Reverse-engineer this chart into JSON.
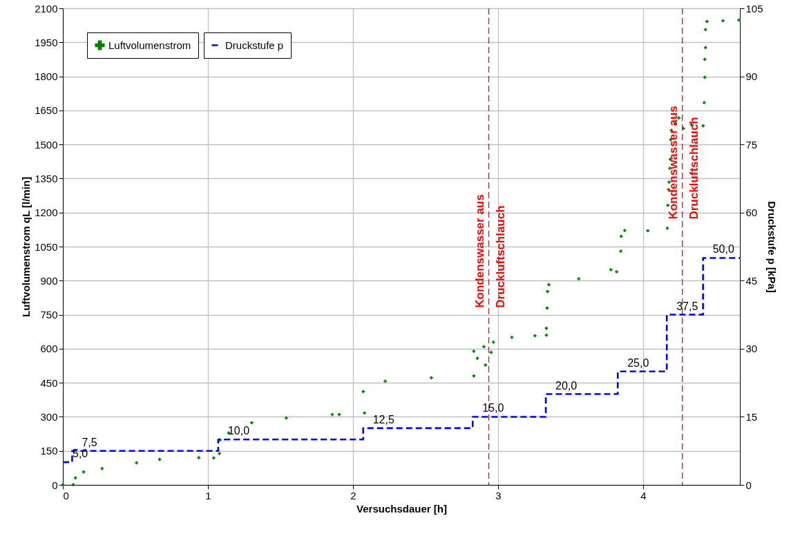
{
  "chart_data": {
    "type": "scatter",
    "xlabel": "Versuchsdauer [h]",
    "ylabel": "Luftvolumenstrom qL [l/min]",
    "y2label": "Druckstufe p [kPa]",
    "xlim": [
      0,
      4.667
    ],
    "xticks": [
      0,
      1,
      2,
      3,
      4
    ],
    "ylim": [
      0,
      2100
    ],
    "yticks": [
      0,
      150,
      300,
      450,
      600,
      750,
      900,
      1050,
      1200,
      1350,
      1500,
      1650,
      1800,
      1950,
      2100
    ],
    "y2lim": [
      0,
      105
    ],
    "y2ticks": [
      0,
      15,
      30,
      45,
      60,
      75,
      90,
      105
    ],
    "grid": true,
    "legend": "top left",
    "marker": "cross",
    "series": [
      {
        "name": "Luftvolumenstrom",
        "color": "#008000",
        "x": [
          0.0,
          0.071,
          0.087,
          0.143,
          0.27,
          0.508,
          0.667,
          0.937,
          1.04,
          1.079,
          1.083,
          1.143,
          1.302,
          1.54,
          1.857,
          1.905,
          2.079,
          2.071,
          2.222,
          2.54,
          2.833,
          2.833,
          2.857,
          2.902,
          2.913,
          2.952,
          2.968,
          3.095,
          3.254,
          3.333,
          3.333,
          3.338,
          3.341,
          3.35,
          3.556,
          3.778,
          3.817,
          3.846,
          3.849,
          3.873,
          4.032,
          4.167,
          4.17,
          4.175,
          4.179,
          4.184,
          4.187,
          4.19,
          4.195,
          4.222,
          4.246,
          4.278,
          4.333,
          4.413,
          4.421,
          4.425,
          4.425,
          4.43,
          4.43,
          4.44,
          4.55,
          4.66
        ],
        "values": [
          1,
          1,
          31,
          57,
          72,
          97,
          112,
          120,
          119,
          138,
          198,
          229,
          274,
          295,
          310,
          310,
          317,
          411,
          457,
          472,
          480,
          589,
          558,
          609,
          528,
          584,
          629,
          650,
          657,
          660,
          690,
          779,
          852,
          882,
          908,
          948,
          939,
          1030,
          1095,
          1121,
          1120,
          1131,
          1232,
          1301,
          1334,
          1395,
          1435,
          1521,
          1562,
          1593,
          1617,
          1571,
          1587,
          1582,
          1684,
          1796,
          1875,
          1927,
          2006,
          2042,
          2045,
          2048
        ]
      },
      {
        "name": "Druckstufe p",
        "type": "step",
        "axis": "y2",
        "color": "#0000ff",
        "line_style": "dashed",
        "marker": "none",
        "x": [
          0,
          0.064,
          1.071,
          2.07,
          2.825,
          3.329,
          3.825,
          4.163,
          4.413,
          4.667
        ],
        "values": [
          5,
          7.5,
          10,
          12.5,
          15,
          20,
          25,
          37.5,
          50,
          50
        ],
        "value_labels": [
          "5,0",
          "7,5",
          "10,0",
          "12,5",
          "15,0",
          "20,0",
          "25,0",
          "37,5",
          "50,0",
          null
        ]
      }
    ],
    "ref_lines": [
      {
        "axis": "x",
        "value": 2.936,
        "color": "#ff0000",
        "line_style": "dashed"
      },
      {
        "axis": "x",
        "value": 4.27,
        "color": "#ff0000",
        "line_style": "dashed"
      }
    ],
    "annotations": [
      {
        "text": "Kondenswasser aus\nDruckluftschlauch",
        "x": 2.936,
        "y": 780
      },
      {
        "text": "Kondenswasser aus\nDruckluftschlauch",
        "x": 4.27,
        "y": 1170
      }
    ]
  }
}
